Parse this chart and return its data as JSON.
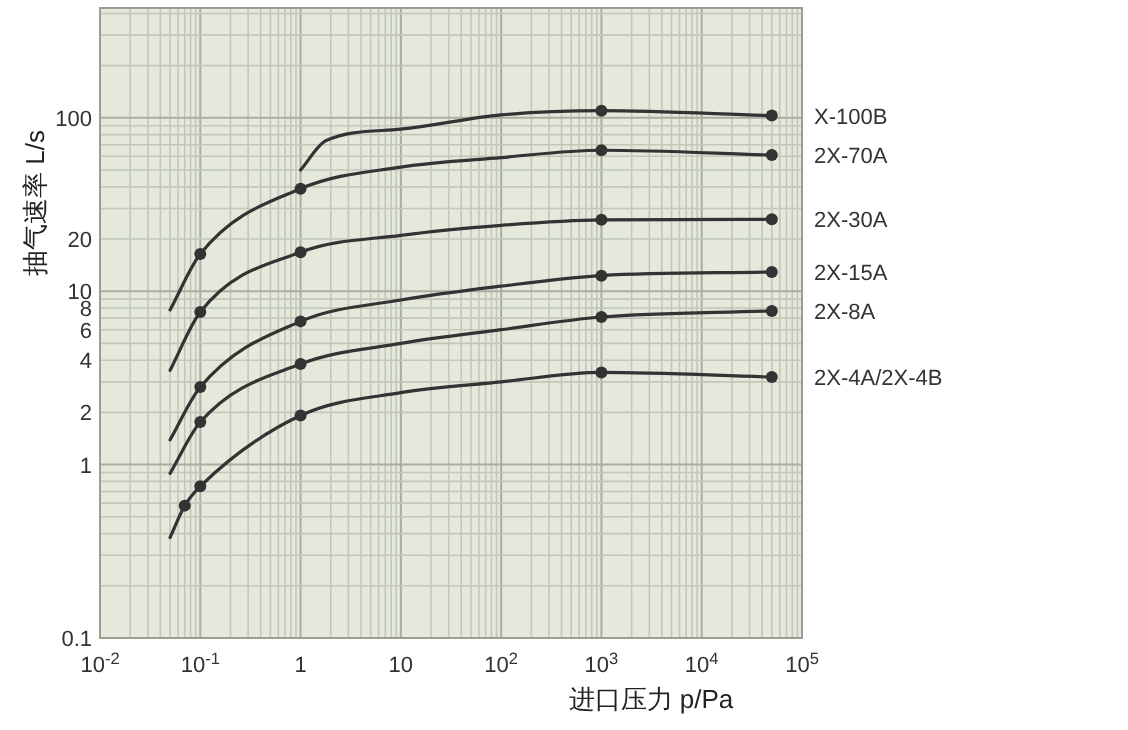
{
  "chart_data": {
    "type": "line",
    "xlabel": "进口压力 p/Pa",
    "ylabel": "抽气速率 L/s",
    "log": "xy",
    "grid": true,
    "xlim": [
      0.01,
      100000
    ],
    "ylim": [
      0.1,
      430
    ],
    "xticks": [
      {
        "value": 0.01,
        "label": "10$^{-2}$"
      },
      {
        "value": 0.1,
        "label": "10$^{-1}$"
      },
      1,
      10,
      {
        "value": 100,
        "label": "10$^{2}$"
      },
      {
        "value": 1000,
        "label": "10$^{3}$"
      },
      {
        "value": 10000,
        "label": "10$^{4}$"
      },
      {
        "value": 100000,
        "label": "10$^{5}$"
      }
    ],
    "yticks": [
      0.1,
      1,
      2,
      4,
      6,
      8,
      10,
      20,
      100
    ],
    "series": [
      {
        "name": "X-100B",
        "marker": "none",
        "color": "#333333",
        "x": [
          1,
          1.8,
          10,
          100,
          1000,
          50000
        ],
        "values": [
          50,
          74,
          86,
          104,
          110,
          103
        ]
      },
      {
        "type": "scatter",
        "marker": "circle",
        "color": "#333333",
        "x": [
          1000,
          50000
        ],
        "values": [
          110,
          103
        ]
      },
      {
        "name": "2X-70A",
        "marker": "none",
        "color": "#333333",
        "x": [
          0.05,
          0.1,
          1,
          10,
          100,
          1000,
          50000
        ],
        "values": [
          7.8,
          16.4,
          39,
          52,
          59,
          65,
          61
        ]
      },
      {
        "type": "scatter",
        "marker": "circle",
        "color": "#333333",
        "x": [
          0.1,
          1,
          1000,
          50000
        ],
        "values": [
          16.4,
          39,
          65,
          61
        ]
      },
      {
        "name": "2X-30A",
        "marker": "none",
        "color": "#333333",
        "x": [
          0.05,
          0.1,
          1,
          10,
          100,
          1000,
          50000
        ],
        "values": [
          3.5,
          7.6,
          16.8,
          21,
          24,
          25.8,
          26
        ]
      },
      {
        "type": "scatter",
        "marker": "circle",
        "color": "#333333",
        "x": [
          0.1,
          1,
          1000,
          50000
        ],
        "values": [
          7.6,
          16.8,
          25.8,
          26
        ]
      },
      {
        "name": "2X-15A",
        "marker": "none",
        "color": "#333333",
        "x": [
          0.05,
          0.1,
          1,
          10,
          100,
          1000,
          50000
        ],
        "values": [
          1.39,
          2.8,
          6.7,
          8.9,
          10.7,
          12.3,
          12.9
        ]
      },
      {
        "type": "scatter",
        "marker": "circle",
        "color": "#333333",
        "x": [
          0.1,
          1,
          1000,
          50000
        ],
        "values": [
          2.8,
          6.7,
          12.3,
          12.9
        ]
      },
      {
        "name": "2X-8A",
        "marker": "none",
        "color": "#333333",
        "x": [
          0.05,
          0.1,
          1,
          10,
          100,
          1000,
          50000
        ],
        "values": [
          0.89,
          1.76,
          3.8,
          5.0,
          6.0,
          7.1,
          7.7
        ]
      },
      {
        "type": "scatter",
        "marker": "circle",
        "color": "#333333",
        "x": [
          0.1,
          1,
          1000,
          50000
        ],
        "values": [
          1.76,
          3.8,
          7.1,
          7.7
        ]
      },
      {
        "name": "2X-4A/2X-4B",
        "marker": "none",
        "color": "#333333",
        "x": [
          0.05,
          0.07,
          0.1,
          1,
          10,
          100,
          1000,
          50000
        ],
        "values": [
          0.38,
          0.58,
          0.75,
          1.92,
          2.6,
          3.0,
          3.4,
          3.2
        ]
      },
      {
        "type": "scatter",
        "marker": "circle",
        "color": "#333333",
        "x": [
          0.07,
          0.1,
          1,
          1000,
          50000
        ],
        "values": [
          0.58,
          0.75,
          1.92,
          3.4,
          3.2
        ]
      }
    ]
  }
}
